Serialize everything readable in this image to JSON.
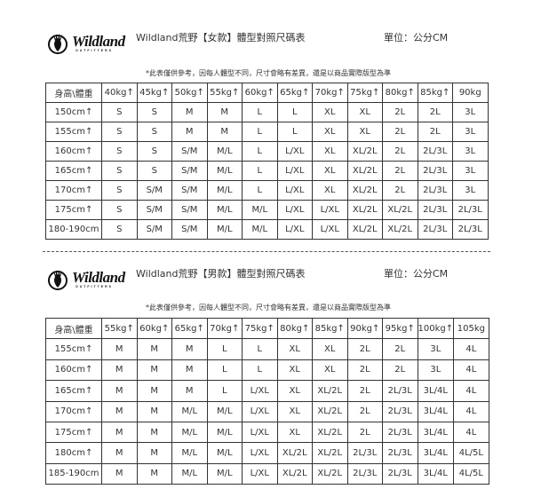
{
  "logo": {
    "word": "Wildland",
    "sub": "OUTFITTERS"
  },
  "women": {
    "title": "Wildland荒野【女款】體型對照尺碼表",
    "unit": "單位：公分CM",
    "note": "*此表僅供參考，因每人體型不同，尺寸會略有差異，還是以商品實際版型為準",
    "header": [
      "身高\\體重",
      "40kg↑",
      "45kg↑",
      "50kg↑",
      "55kg↑",
      "60kg↑",
      "65kg↑",
      "70kg↑",
      "75kg↑",
      "80kg↑",
      "85kg↑",
      "90kg"
    ],
    "rows": [
      [
        "150cm↑",
        "S",
        "S",
        "M",
        "M",
        "L",
        "L",
        "XL",
        "XL",
        "2L",
        "2L",
        "3L"
      ],
      [
        "155cm↑",
        "S",
        "S",
        "M",
        "M",
        "L",
        "L",
        "XL",
        "XL",
        "2L",
        "2L",
        "3L"
      ],
      [
        "160cm↑",
        "S",
        "S",
        "S/M",
        "M/L",
        "L",
        "L/XL",
        "XL",
        "XL/2L",
        "2L",
        "2L/3L",
        "3L"
      ],
      [
        "165cm↑",
        "S",
        "S",
        "S/M",
        "M/L",
        "L",
        "L/XL",
        "XL",
        "XL/2L",
        "2L",
        "2L/3L",
        "3L"
      ],
      [
        "170cm↑",
        "S",
        "S/M",
        "S/M",
        "M/L",
        "L",
        "L/XL",
        "XL",
        "XL/2L",
        "2L",
        "2L/3L",
        "3L"
      ],
      [
        "175cm↑",
        "S",
        "S/M",
        "S/M",
        "M/L",
        "M/L",
        "L/XL",
        "L/XL",
        "XL/2L",
        "XL/2L",
        "2L/3L",
        "2L/3L"
      ],
      [
        "180-190cm",
        "S",
        "S/M",
        "S/M",
        "M/L",
        "M/L",
        "L/XL",
        "L/XL",
        "XL/2L",
        "XL/2L",
        "2L/3L",
        "2L/3L"
      ]
    ]
  },
  "men": {
    "title": "Wildland荒野【男款】體型對照尺碼表",
    "unit": "單位：公分CM",
    "note": "*此表僅供參考，因每人體型不同，尺寸會略有差異，還是以商品實際版型為準",
    "header": [
      "身高\\體重",
      "55kg↑",
      "60kg↑",
      "65kg↑",
      "70kg↑",
      "75kg↑",
      "80kg↑",
      "85kg↑",
      "90kg↑",
      "95kg↑",
      "100kg↑",
      "105kg"
    ],
    "rows": [
      [
        "155cm↑",
        "M",
        "M",
        "M",
        "L",
        "L",
        "XL",
        "XL",
        "2L",
        "2L",
        "3L",
        "4L"
      ],
      [
        "160cm↑",
        "M",
        "M",
        "M",
        "L",
        "L",
        "XL",
        "XL",
        "2L",
        "2L",
        "3L",
        "4L"
      ],
      [
        "165cm↑",
        "M",
        "M",
        "M",
        "L",
        "L/XL",
        "XL",
        "XL/2L",
        "2L",
        "2L/3L",
        "3L/4L",
        "4L"
      ],
      [
        "170cm↑",
        "M",
        "M",
        "M/L",
        "M/L",
        "L/XL",
        "XL",
        "XL/2L",
        "2L",
        "2L/3L",
        "3L/4L",
        "4L"
      ],
      [
        "175cm↑",
        "M",
        "M",
        "M/L",
        "M/L",
        "L/XL",
        "XL",
        "XL/2L",
        "2L",
        "2L/3L",
        "3L/4L",
        "4L"
      ],
      [
        "180cm↑",
        "M",
        "M",
        "M/L",
        "M/L",
        "L/XL",
        "XL/2L",
        "XL/2L",
        "2L/3L",
        "2L/3L",
        "3L/4L",
        "4L/5L"
      ],
      [
        "185-190cm",
        "M",
        "M",
        "M/L",
        "M/L",
        "L/XL",
        "XL/2L",
        "XL/2L",
        "2L/3L",
        "2L/3L",
        "3L/4L",
        "4L/5L"
      ]
    ]
  }
}
